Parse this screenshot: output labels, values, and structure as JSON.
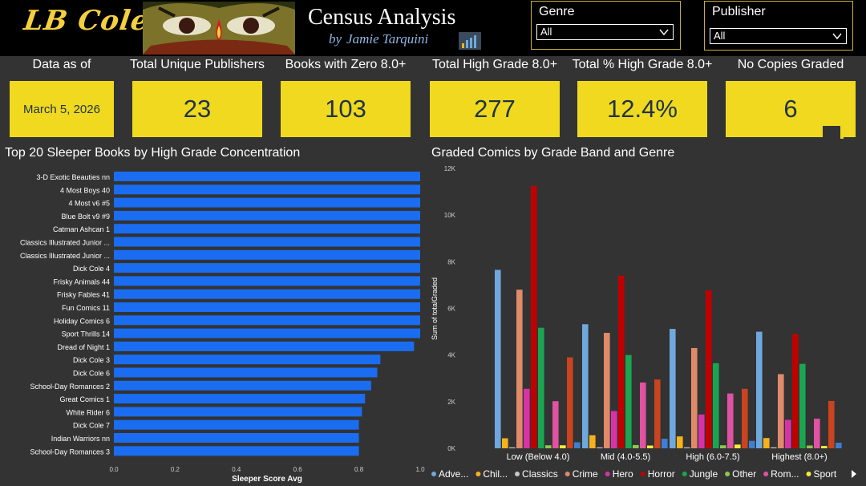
{
  "header": {
    "logo_text": "LB Cole",
    "title": "Census Analysis",
    "by_word": "by",
    "author": "Jamie Tarquini"
  },
  "filters": {
    "genre": {
      "label": "Genre",
      "selected": "All"
    },
    "publisher": {
      "label": "Publisher",
      "selected": "All"
    }
  },
  "kpis": [
    {
      "title": "Data as of",
      "value": "March 5, 2026"
    },
    {
      "title": "Total Unique Publishers",
      "value": "23"
    },
    {
      "title": "Books with Zero 8.0+",
      "value": "103"
    },
    {
      "title": "Total High Grade 8.0+",
      "value": "277"
    },
    {
      "title": "Total % High Grade 8.0+",
      "value": "12.4%"
    },
    {
      "title": "No Copies Graded",
      "value": "6"
    }
  ],
  "colors": {
    "header_bg": "#000000",
    "page_bg": "#333333",
    "kpi_fill": "#f0d91e",
    "kpi_text": "#1f3348",
    "bar_color": "#1a6df0",
    "logo_color": "#f4d03f",
    "accent_blue": "#8fb6e3"
  },
  "chart_data": [
    {
      "type": "bar",
      "orientation": "horizontal",
      "title": "Top 20 Sleeper Books by High Grade Concentration",
      "xlabel": "Sleeper Score Avg",
      "xlim": [
        0,
        1
      ],
      "xticks": [
        "0.0",
        "0.2",
        "0.4",
        "0.6",
        "0.8",
        "1.0"
      ],
      "categories": [
        "3-D Exotic Beauties nn",
        "4 Most Boys 40",
        "4 Most v6 #5",
        "Blue Bolt v9 #9",
        "Catman Ashcan 1",
        "Classics Illustrated Junior ...",
        "Classics Illustrated Junior ...",
        "Dick Cole 4",
        "Frisky Animals 44",
        "Frisky Fables 41",
        "Fun Comics 11",
        "Holiday Comics 6",
        "Sport Thrills 14",
        "Dread of Night 1",
        "Dick Cole 3",
        "Dick Cole 6",
        "School-Day Romances 2",
        "Great Comics 1",
        "White Rider 6",
        "Dick Cole 7",
        "Indian Warriors nn",
        "School-Day Romances 3"
      ],
      "values": [
        1.0,
        1.0,
        1.0,
        1.0,
        1.0,
        1.0,
        1.0,
        1.0,
        1.0,
        1.0,
        1.0,
        1.0,
        1.0,
        0.98,
        0.87,
        0.86,
        0.84,
        0.82,
        0.81,
        0.8,
        0.8,
        0.8
      ],
      "color": "#1a6df0",
      "grid": false
    },
    {
      "type": "bar",
      "orientation": "vertical",
      "title": "Graded Comics by Grade Band and Genre",
      "ylabel": "Sum of totalGraded",
      "ylim": [
        0,
        12000
      ],
      "yticks": [
        "0K",
        "2K",
        "4K",
        "6K",
        "8K",
        "10K",
        "12K"
      ],
      "categories": [
        "Low (Below 4.0)",
        "Mid (4.0-5.5)",
        "High (6.0-7.5)",
        "Highest (8.0+)"
      ],
      "legend_position": "bottom",
      "series": [
        {
          "name": "Adve...",
          "color": "#6fa8dc",
          "values": [
            7650,
            5320,
            5120,
            5000
          ]
        },
        {
          "name": "Chil...",
          "color": "#f6b21b",
          "values": [
            430,
            560,
            510,
            440
          ]
        },
        {
          "name": "Classics",
          "color": "#c8c8c8",
          "values": [
            40,
            40,
            40,
            40
          ]
        },
        {
          "name": "Crime",
          "color": "#e08a6a",
          "values": [
            6800,
            4950,
            4300,
            3180
          ]
        },
        {
          "name": "Hero",
          "color": "#d633a8",
          "values": [
            2550,
            1600,
            1450,
            1220
          ]
        },
        {
          "name": "Horror",
          "color": "#c00000",
          "values": [
            11250,
            7400,
            6770,
            4900
          ]
        },
        {
          "name": "Jungle",
          "color": "#1aa551",
          "values": [
            5170,
            4000,
            3650,
            3620
          ]
        },
        {
          "name": "Other",
          "color": "#8cc850",
          "values": [
            130,
            140,
            130,
            120
          ]
        },
        {
          "name": "Rom...",
          "color": "#e052a2",
          "values": [
            2020,
            2820,
            2350,
            1270
          ]
        },
        {
          "name": "Sport",
          "color": "#f4eb3c",
          "values": [
            130,
            120,
            160,
            100
          ]
        },
        {
          "name": "Extra",
          "color": "#c9441f",
          "values": [
            3900,
            2950,
            2550,
            2030
          ],
          "in_legend": false
        },
        {
          "name": "Extra2",
          "color": "#3d7fd1",
          "values": [
            260,
            410,
            320,
            240
          ],
          "in_legend": false
        }
      ],
      "grid": false
    }
  ]
}
